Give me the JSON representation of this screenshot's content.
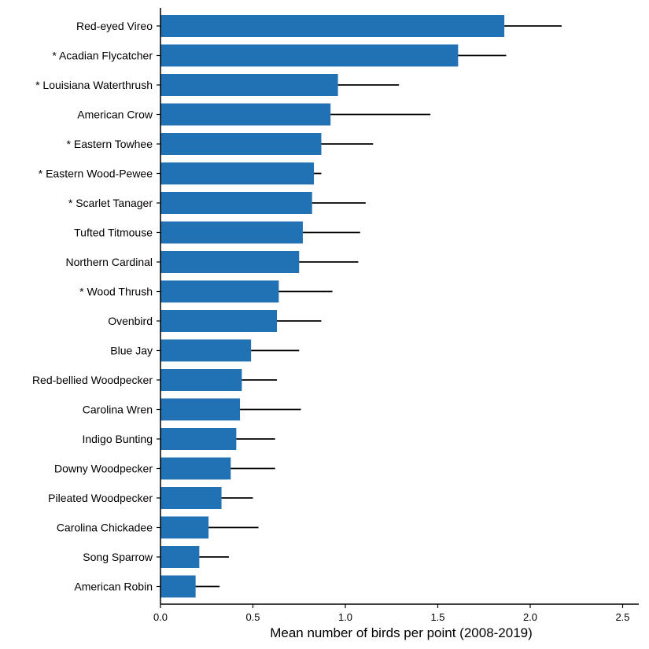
{
  "chart_data": {
    "type": "bar",
    "orientation": "horizontal",
    "title": "",
    "xlabel": "Mean number of birds per point (2008-2019)",
    "ylabel": "",
    "xlim": [
      0,
      2.6
    ],
    "xticks": [
      0,
      0.5,
      1,
      1.5,
      2,
      2.5
    ],
    "xtick_labels": [
      "0.0",
      "0.5",
      "1.0",
      "1.5",
      "2.0",
      "2.5"
    ],
    "grid": false,
    "legend": "none",
    "bar_color": "#2171b5",
    "error_color": "#000000",
    "categories": [
      "Red-eyed Vireo",
      "* Acadian Flycatcher",
      "* Louisiana Waterthrush",
      "American Crow",
      "* Eastern Towhee",
      "* Eastern Wood-Pewee",
      "* Scarlet Tanager",
      "Tufted Titmouse",
      "Northern Cardinal",
      "* Wood Thrush",
      "Ovenbird",
      "Blue Jay",
      "Red-bellied Woodpecker",
      "Carolina Wren",
      "Indigo Bunting",
      "Downy Woodpecker",
      "Pileated Woodpecker",
      "Carolina Chickadee",
      "Song Sparrow",
      "American Robin"
    ],
    "values": [
      1.86,
      1.61,
      0.96,
      0.92,
      0.87,
      0.83,
      0.82,
      0.77,
      0.75,
      0.64,
      0.63,
      0.49,
      0.44,
      0.43,
      0.41,
      0.38,
      0.33,
      0.26,
      0.21,
      0.19
    ],
    "error_upper": [
      2.17,
      1.87,
      1.29,
      1.46,
      1.15,
      0.87,
      1.11,
      1.08,
      1.07,
      0.93,
      0.87,
      0.75,
      0.63,
      0.76,
      0.62,
      0.62,
      0.5,
      0.53,
      0.37,
      0.32
    ]
  }
}
